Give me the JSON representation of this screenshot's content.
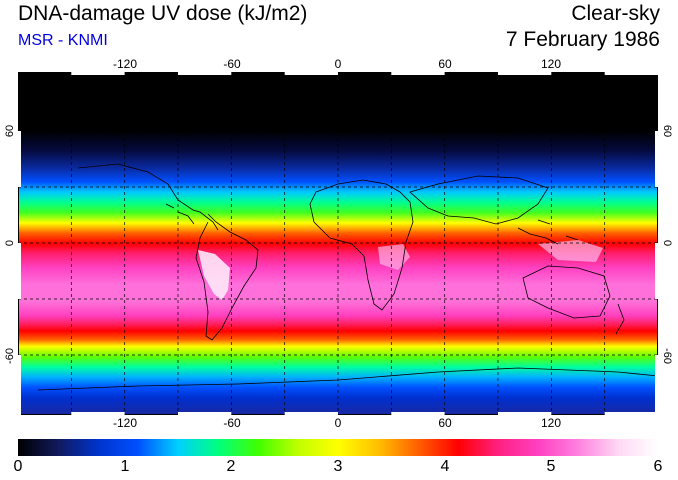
{
  "header": {
    "title": "DNA-damage UV dose (kJ/m2)",
    "subtitle": "MSR - KNMI",
    "condition": "Clear-sky",
    "date": "7 February 1986"
  },
  "map": {
    "lon_labels": [
      "-120",
      "-60",
      "0",
      "60",
      "120"
    ],
    "lat_labels_left": [
      "60",
      "0",
      "-60"
    ],
    "lat_labels_right": [
      "60",
      "0",
      "-60"
    ]
  },
  "colorbar": {
    "labels": [
      "0",
      "1",
      "2",
      "3",
      "4",
      "5",
      "6"
    ],
    "colors": [
      "#000000",
      "#101a5c",
      "#0033cc",
      "#0050ff",
      "#00d0ff",
      "#00ff80",
      "#40ff00",
      "#c0ff00",
      "#ffff00",
      "#ffc000",
      "#ff6000",
      "#ff0000",
      "#ff2080",
      "#ff40c0",
      "#ff80e0",
      "#ffd8f4",
      "#ffffff"
    ]
  }
}
